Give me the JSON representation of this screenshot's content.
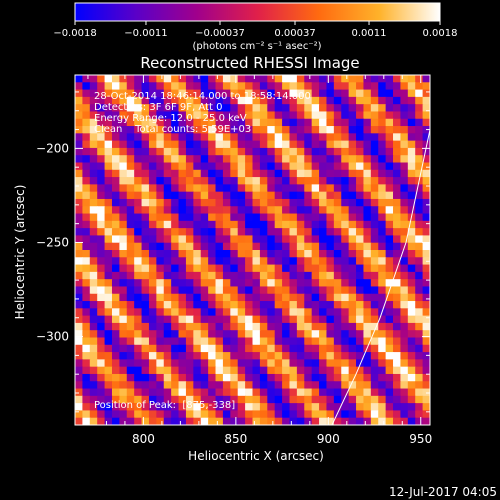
{
  "chart_data": {
    "type": "heatmap",
    "title": "Reconstructed RHESSI Image",
    "xlabel": "Heliocentric X (arcsec)",
    "ylabel": "Heliocentric Y (arcsec)",
    "xlim": [
      763,
      955
    ],
    "ylim": [
      -347,
      -161
    ],
    "x_ticks": [
      800,
      850,
      900,
      950
    ],
    "y_ticks": [
      -200,
      -250,
      -300
    ],
    "y_tick_labels": [
      "−200",
      "−250",
      "−300"
    ],
    "colorbar": {
      "range": [
        -0.0018,
        0.0018
      ],
      "ticks": [
        -0.0018,
        -0.0011,
        -0.00037,
        0.00037,
        0.0011,
        0.0018
      ],
      "tick_labels": [
        "−0.0018",
        "−0.0011",
        "−0.00037",
        "0.00037",
        "0.0011",
        "0.0018"
      ],
      "unit_label": "(photons cm⁻² s⁻¹ asec⁻²)",
      "colormap": [
        "#0000ff",
        "#5a00c8",
        "#a0008c",
        "#e0204a",
        "#ff6a10",
        "#ffb22a",
        "#ffffff"
      ]
    },
    "annotations": [
      "28-Oct-2014 18:46:14.000 to 18:58:14.000",
      "Detectors: 3F 6F 9F, Att 0",
      "Energy Range: 12.0 - 25.0 keV",
      "Clean    Total counts: 5.59E+03"
    ],
    "peak_label": "Position of Peak:  [875,-338]",
    "limb_curve": [
      [
        902,
        -347
      ],
      [
        915,
        -320
      ],
      [
        928,
        -290
      ],
      [
        942,
        -250
      ],
      [
        955,
        -190
      ],
      [
        958,
        -161
      ]
    ],
    "image": "pixelated heatmap with diagonal stripe pattern (rows rising to the right), brighter yellow stripes on left and right, dark region near center",
    "footer_date": "12-Jul-2017 04:05"
  }
}
